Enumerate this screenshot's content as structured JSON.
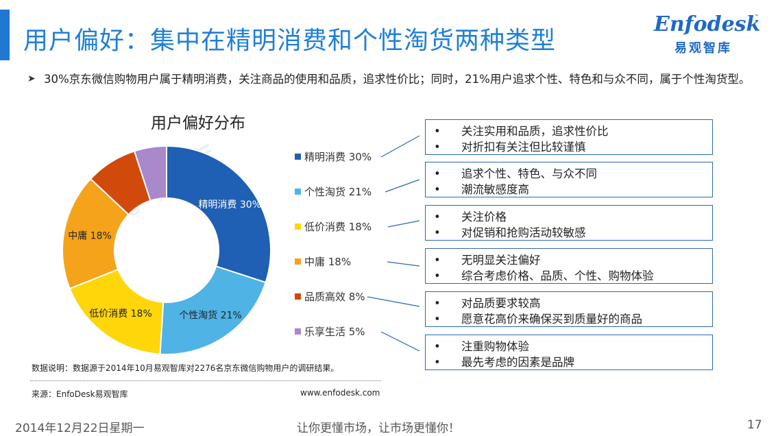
{
  "header": {
    "title": "用户偏好：集中在精明消费和个性淘货两种类型",
    "accent_color": "#1f78d1"
  },
  "logo": {
    "word": "Enfodesk",
    "tm": "™",
    "cn": "易观智库"
  },
  "summary": {
    "bullet_icon": "arrow-bullet-icon",
    "text": "30%京东微信购物用户属于精明消费，关注商品的使用和品质，追求性价比；同时，21%用户追求个性、特色和与众不同，属于个性淘货型。"
  },
  "watermark": "易观智库",
  "chart_data": {
    "type": "pie",
    "title": "用户偏好分布",
    "unit": "%",
    "categories": [
      "精明消费",
      "个性淘货",
      "低价消费",
      "中庸",
      "品质高效",
      "乐享生活"
    ],
    "values": [
      30,
      21,
      18,
      18,
      8,
      5
    ],
    "colors": [
      "#1f5fb4",
      "#4fb3e6",
      "#ffd60a",
      "#f5a31a",
      "#d24a0b",
      "#a988cc"
    ],
    "slice_labels": [
      "精明消费 30%",
      "个性淘货 21%",
      "低价消费 18%",
      "中庸 18%",
      "",
      ""
    ],
    "legend_labels": [
      "精明消费 30%",
      "个性淘货 21%",
      "低价消费 18%",
      "中庸 18%",
      "品质高效 8%",
      "乐享生活 5%"
    ],
    "legend_position": "right"
  },
  "descriptions": [
    [
      "关注实用和品质，追求性价比",
      "对折扣有关注但比较谨慎"
    ],
    [
      "追求个性、特色、与众不同",
      "潮流敏感度高"
    ],
    [
      "关注价格",
      "对促销和抢购活动较敏感"
    ],
    [
      "无明显关注偏好",
      "综合考虑价格、品质、个性、购物体验"
    ],
    [
      "对品质要求较高",
      "愿意花高价来确保买到质量好的商品"
    ],
    [
      "注重购物体验",
      "最先考虑的因素是品牌"
    ]
  ],
  "notes": {
    "data_note": "数据说明：数据源于2014年10月易观智库对2276名京东微信购物用户的调研结果。",
    "source": "来源：EnfoDesk易观智库",
    "url": "www.enfodesk.com"
  },
  "footer": {
    "date": "2014年12月22日星期一",
    "slogan": "让你更懂市场，让市场更懂你！",
    "page": "17"
  }
}
